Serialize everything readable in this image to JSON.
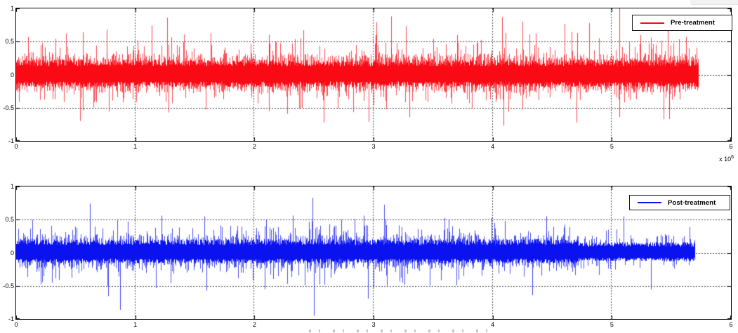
{
  "figure": {
    "background": "#ffffff",
    "style": "matlab-classic"
  },
  "cropped_ui_fragment": {
    "color": "#f2f2f4"
  },
  "chart_data": [
    {
      "type": "line",
      "plot": "top-subplot",
      "legend_label": "Pre-treatment",
      "legend_position": "northeast",
      "color": "#fa0a14",
      "grid": true,
      "grid_color": "#4f4f4f",
      "xlim": [
        0,
        6
      ],
      "ylim": [
        -1,
        1
      ],
      "x_unit": "samples x 10^6",
      "x_max": 6,
      "x_exponent": {
        "base": "x 10",
        "exp": "6"
      },
      "x_ticks": [
        {
          "v": 0,
          "label": "0"
        },
        {
          "v": 1,
          "label": "1"
        },
        {
          "v": 2,
          "label": "2"
        },
        {
          "v": 3,
          "label": "3"
        },
        {
          "v": 4,
          "label": "4"
        },
        {
          "v": 5,
          "label": "5"
        },
        {
          "v": 6,
          "label": "6"
        }
      ],
      "y_ticks": [
        {
          "v": 1,
          "label": "1"
        },
        {
          "v": 0.5,
          "label": "0.5"
        },
        {
          "v": 0,
          "label": "0"
        },
        {
          "v": -0.5,
          "label": "-0.5"
        },
        {
          "v": -1,
          "label": "-1"
        }
      ],
      "signal": {
        "description": "dense audio noise band with frequent spikes",
        "seed": 42,
        "data_end": 5.73,
        "band_upper": 0.175,
        "band_lower": -0.145,
        "spikes_up": [
          [
            0.55,
            0.2,
            0.12
          ],
          [
            0.1,
            0.32,
            0.16
          ],
          [
            0.022,
            0.48,
            0.17
          ],
          [
            0.006,
            0.65,
            0.22
          ]
        ],
        "spikes_down": [
          [
            0.5,
            0.17,
            0.11
          ],
          [
            0.09,
            0.28,
            0.14
          ],
          [
            0.02,
            0.42,
            0.15
          ],
          [
            0.005,
            0.55,
            0.18
          ]
        ],
        "landmarks": [
          [
            0.1,
            0.57
          ],
          [
            0.33,
            0.54
          ],
          [
            0.56,
            0.64
          ],
          [
            0.56,
            -0.52
          ],
          [
            0.76,
            0.68
          ],
          [
            1.14,
            0.74
          ],
          [
            1.27,
            0.86
          ],
          [
            1.28,
            -0.55
          ],
          [
            1.63,
            0.63
          ],
          [
            2.12,
            0.6
          ],
          [
            2.41,
            0.67
          ],
          [
            2.58,
            -0.7
          ],
          [
            3.02,
            0.6
          ],
          [
            3.15,
            0.88
          ],
          [
            3.27,
            0.73
          ],
          [
            3.3,
            -0.62
          ],
          [
            3.7,
            0.6
          ],
          [
            4.08,
            0.87
          ],
          [
            4.09,
            -0.75
          ],
          [
            4.36,
            0.62
          ],
          [
            4.71,
            0.63
          ],
          [
            5.06,
            1.0
          ],
          [
            5.06,
            -0.62
          ],
          [
            5.24,
            0.6
          ],
          [
            5.47,
            0.9
          ],
          [
            5.48,
            -0.65
          ],
          [
            5.62,
            0.57
          ]
        ]
      }
    },
    {
      "type": "line",
      "plot": "bottom-subplot",
      "legend_label": "Post-treatment",
      "legend_position": "northeast",
      "color": "#0a12f0",
      "grid": true,
      "grid_color": "#4f4f4f",
      "xlim": [
        0,
        6
      ],
      "ylim": [
        -1,
        1
      ],
      "x_unit": "samples x 10^6",
      "x_max": 6,
      "x_ticks": [
        {
          "v": 0,
          "label": "0"
        },
        {
          "v": 1,
          "label": "1"
        },
        {
          "v": 2,
          "label": "2"
        },
        {
          "v": 3,
          "label": "3"
        },
        {
          "v": 4,
          "label": "4"
        },
        {
          "v": 5,
          "label": "5"
        },
        {
          "v": 6,
          "label": "6"
        }
      ],
      "y_ticks": [
        {
          "v": 1,
          "label": "1"
        },
        {
          "v": 0.5,
          "label": "0.5"
        },
        {
          "v": 0,
          "label": "0"
        },
        {
          "v": -0.5,
          "label": "-0.5"
        },
        {
          "v": -1,
          "label": "-1"
        }
      ],
      "signal": {
        "description": "dense audio noise band, quieter tail after 4.7e6 samples",
        "seed": 1337,
        "data_end": 5.7,
        "band_upper": 0.16,
        "band_lower": -0.125,
        "spikes_up": [
          [
            0.45,
            0.18,
            0.1
          ],
          [
            0.08,
            0.28,
            0.14
          ],
          [
            0.02,
            0.42,
            0.14
          ],
          [
            0.004,
            0.55,
            0.18
          ]
        ],
        "spikes_down": [
          [
            0.4,
            0.15,
            0.1
          ],
          [
            0.07,
            0.25,
            0.13
          ],
          [
            0.018,
            0.38,
            0.14
          ],
          [
            0.004,
            0.5,
            0.17
          ]
        ],
        "tail": {
          "start": 4.72,
          "band_upper": 0.125,
          "band_lower": -0.1,
          "spike_factor": 0.35
        },
        "landmarks": [
          [
            0.62,
            0.74
          ],
          [
            0.87,
            -0.84
          ],
          [
            1.22,
            0.56
          ],
          [
            1.6,
            -0.55
          ],
          [
            2.1,
            0.5
          ],
          [
            2.32,
            0.56
          ],
          [
            2.49,
            0.83
          ],
          [
            2.5,
            -0.93
          ],
          [
            2.73,
            0.5
          ],
          [
            2.92,
            0.56
          ],
          [
            2.95,
            -0.67
          ],
          [
            3.1,
            0.5
          ],
          [
            3.63,
            0.5
          ],
          [
            4.1,
            0.48
          ],
          [
            4.33,
            -0.62
          ],
          [
            4.45,
            0.55
          ]
        ]
      }
    }
  ]
}
